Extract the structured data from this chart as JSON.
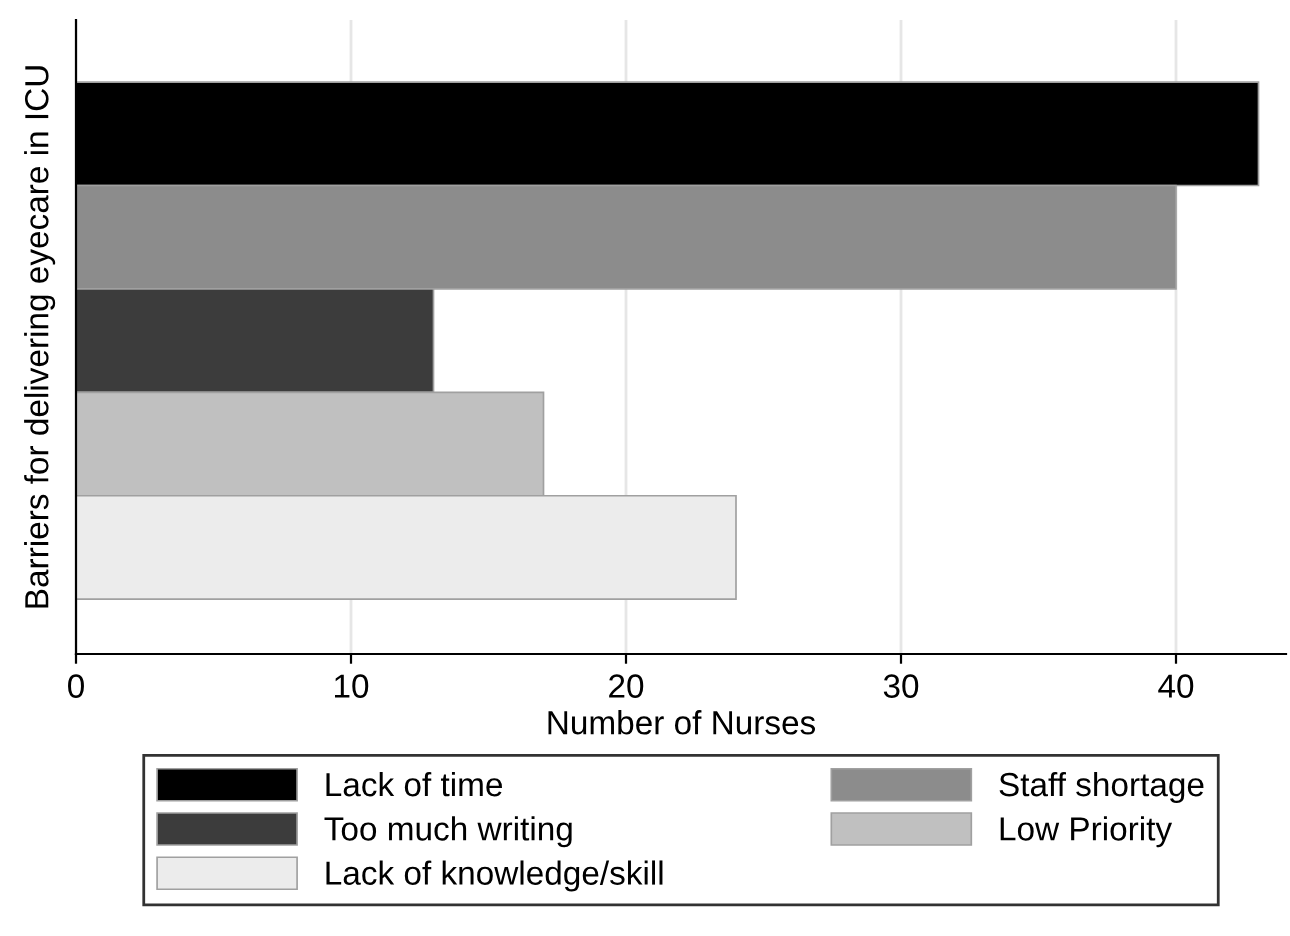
{
  "chart_data": {
    "type": "bar",
    "orientation": "horizontal",
    "ylabel": "Barriers for delivering eyecare in ICU",
    "xlabel": "Number of Nurses",
    "categories": [
      null,
      null,
      null,
      null,
      null
    ],
    "series": [
      {
        "name": "Lack of time",
        "color": "#000000",
        "values": [
          43,
          null,
          null,
          null,
          null
        ]
      },
      {
        "name": "Staff shortage",
        "color": "#8c8c8c",
        "values": [
          null,
          40,
          null,
          null,
          null
        ]
      },
      {
        "name": "Too much writing",
        "color": "#3c3c3c",
        "values": [
          null,
          null,
          13,
          null,
          null
        ]
      },
      {
        "name": "Low Priority",
        "color": "#c0c0c0",
        "values": [
          null,
          null,
          null,
          17,
          null
        ]
      },
      {
        "name": "Lack of knowledge/skill",
        "color": "#ececec",
        "values": [
          null,
          null,
          null,
          null,
          24
        ]
      }
    ],
    "stacked": true,
    "xlim": [
      0,
      44
    ],
    "xticks": [
      0,
      10,
      20,
      30,
      40
    ],
    "grid": "x",
    "legend": "bottom"
  }
}
